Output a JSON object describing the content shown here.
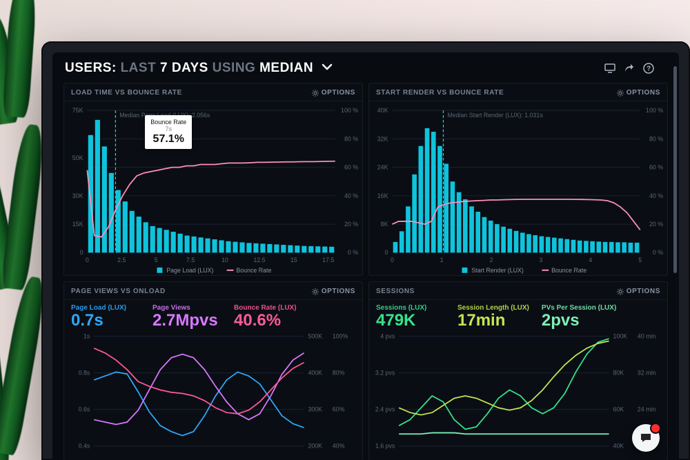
{
  "header": {
    "prefix": "USERS:",
    "range_dim": "LAST",
    "range_strong": "7 DAYS",
    "agg_dim": "USING",
    "agg_strong": "MEDIAN"
  },
  "icons": {
    "monitor_tooltip": "Display",
    "share_tooltip": "Share",
    "help_tooltip": "Help"
  },
  "panels": {
    "top_left": {
      "title": "LOAD TIME VS BOUNCE RATE",
      "options_label": "OPTIONS",
      "type": "bar+line",
      "y_left": {
        "label_unit": "K",
        "max": 75,
        "ticks": [
          0,
          15,
          30,
          50,
          75
        ],
        "tick_labels": [
          "0",
          "15K",
          "30K",
          "50K",
          "75K"
        ],
        "color": "#12d2e8"
      },
      "y_right": {
        "label_unit": "%",
        "max": 100,
        "ticks": [
          0,
          20,
          40,
          60,
          80,
          100
        ],
        "tick_labels": [
          "0 %",
          "20 %",
          "40 %",
          "60 %",
          "80 %",
          "100 %"
        ],
        "color": "#ff6aa8"
      },
      "x": {
        "min": 0,
        "max": 18,
        "ticks": [
          0,
          2.5,
          5,
          7.5,
          10,
          12.5,
          15,
          17.5
        ],
        "tick_labels": [
          "0",
          "2.5",
          "5",
          "7.5",
          "10",
          "12.5",
          "15",
          "17.5"
        ]
      },
      "bars": {
        "color": "#0fc3dc",
        "values": [
          62,
          70,
          56,
          42,
          33,
          27,
          22,
          19,
          16,
          14,
          13,
          12,
          11,
          10,
          9,
          8.5,
          8,
          7.5,
          7,
          6.5,
          6,
          5.7,
          5.4,
          5.1,
          4.9,
          4.7,
          4.5,
          4.3,
          4.1,
          3.9,
          3.7,
          3.5,
          3.4,
          3.3,
          3.2,
          3.1
        ],
        "value_scale_to": 75
      },
      "line": {
        "color": "#ff8fb8",
        "points_pct": [
          58,
          12,
          11,
          18,
          30,
          40,
          48,
          54,
          56,
          57,
          58,
          59,
          60,
          60,
          61,
          61,
          62,
          62,
          62,
          62.5,
          63,
          63,
          63,
          63.2,
          63.5,
          63.5,
          63.6,
          63.7,
          63.8,
          63.8,
          63.9,
          64,
          64,
          64.1,
          64.2,
          64.3
        ]
      },
      "median_marker": {
        "x_value": 2.056,
        "label": "Median Page Load (LUX): 2.056s",
        "color": "#0fe0f8"
      },
      "tooltip": {
        "x_value": 4.2,
        "line1": "Bounce Rate",
        "line2": "7s",
        "big": "57.1%"
      },
      "legend": [
        {
          "swatch": "square",
          "color": "#0fc3dc",
          "label": "Page Load (LUX)"
        },
        {
          "swatch": "line",
          "color": "#ff8fb8",
          "label": "Bounce Rate"
        }
      ]
    },
    "top_right": {
      "title": "START RENDER VS BOUNCE RATE",
      "options_label": "OPTIONS",
      "type": "bar+line",
      "y_left": {
        "max": 40,
        "ticks": [
          0,
          8,
          16,
          24,
          32,
          40
        ],
        "tick_labels": [
          "0",
          "8K",
          "16K",
          "24K",
          "32K",
          "40K"
        ],
        "color": "#12d2e8"
      },
      "y_right": {
        "max": 100,
        "ticks": [
          0,
          20,
          40,
          60,
          80,
          100
        ],
        "tick_labels": [
          "0 %",
          "20 %",
          "40 %",
          "60 %",
          "80 %",
          "100 %"
        ],
        "color": "#ff6aa8"
      },
      "x": {
        "min": 0,
        "max": 5,
        "ticks": [
          0,
          1,
          2,
          3,
          4,
          5
        ],
        "tick_labels": [
          "0",
          "1",
          "2",
          "3",
          "4",
          "5"
        ]
      },
      "bars": {
        "color": "#0fc3dc",
        "values": [
          3,
          6,
          13,
          22,
          30,
          35,
          34,
          30,
          25,
          20,
          17,
          15,
          13,
          11.5,
          10,
          9,
          8,
          7.3,
          6.7,
          6.1,
          5.6,
          5.2,
          4.9,
          4.6,
          4.4,
          4.2,
          4.0,
          3.8,
          3.6,
          3.4,
          3.3,
          3.2,
          3.1,
          3.0,
          3.0,
          2.9,
          2.9,
          2.8,
          2.8
        ],
        "value_scale_to": 40
      },
      "line": {
        "color": "#ff8fb8",
        "points_pct": [
          20,
          22,
          22,
          22,
          21,
          20,
          22,
          32,
          34,
          35,
          35.5,
          36,
          36.3,
          36.5,
          36.7,
          37,
          37,
          37.2,
          37.3,
          37.4,
          37.5,
          37.5,
          37.5,
          37.5,
          37.5,
          37.5,
          37.5,
          37.5,
          37.4,
          37.4,
          37.3,
          37.2,
          37,
          36.5,
          35,
          32,
          28,
          22,
          16
        ]
      },
      "median_marker": {
        "x_value": 1.031,
        "label": "Median Start Render (LUX): 1.031s",
        "color": "#0fe0f8"
      },
      "legend": [
        {
          "swatch": "square",
          "color": "#0fc3dc",
          "label": "Start Render (LUX)"
        },
        {
          "swatch": "line",
          "color": "#ff8fb8",
          "label": "Bounce Rate"
        }
      ]
    },
    "bottom_left": {
      "title": "PAGE VIEWS VS ONLOAD",
      "options_label": "OPTIONS",
      "kpis": [
        {
          "label": "Page Load (LUX)",
          "value": "0.7s",
          "color": "#2fa8ff"
        },
        {
          "label": "Page Views",
          "value": "2.7Mpvs",
          "color": "#d978ff"
        },
        {
          "label": "Bounce Rate (LUX)",
          "value": "40.6%",
          "color": "#ff5a99"
        }
      ],
      "y_left": {
        "ticks_labels": [
          "1s",
          "0.8s",
          "0.6s",
          "0.4s"
        ],
        "color": "#7a8392"
      },
      "y_right_a": {
        "ticks_labels": [
          "500K",
          "400K",
          "300K",
          "200K"
        ],
        "color": "#7a8392"
      },
      "y_right_b": {
        "ticks_labels": [
          "100%",
          "80%",
          "60%",
          "40%"
        ],
        "color": "#7a8392"
      },
      "lines": [
        {
          "color": "#2fa8ff",
          "points": [
            0.78,
            0.8,
            0.82,
            0.81,
            0.72,
            0.62,
            0.55,
            0.52,
            0.5,
            0.52,
            0.6,
            0.7,
            0.78,
            0.82,
            0.8,
            0.76,
            0.68,
            0.6,
            0.56,
            0.54
          ],
          "range": [
            0.4,
            1.0
          ]
        },
        {
          "color": "#d978ff",
          "points": [
            0.3,
            0.28,
            0.26,
            0.28,
            0.38,
            0.55,
            0.72,
            0.82,
            0.85,
            0.82,
            0.72,
            0.58,
            0.45,
            0.35,
            0.3,
            0.35,
            0.5,
            0.68,
            0.8,
            0.86
          ],
          "range": [
            0,
            1
          ]
        },
        {
          "color": "#ff5a99",
          "points": [
            0.9,
            0.86,
            0.8,
            0.72,
            0.62,
            0.58,
            0.55,
            0.53,
            0.52,
            0.5,
            0.46,
            0.4,
            0.36,
            0.35,
            0.38,
            0.45,
            0.55,
            0.65,
            0.73,
            0.78
          ],
          "range": [
            0,
            1
          ]
        }
      ]
    },
    "bottom_right": {
      "title": "SESSIONS",
      "options_label": "OPTIONS",
      "kpis": [
        {
          "label": "Sessions (LUX)",
          "value": "479K",
          "color": "#36e38c"
        },
        {
          "label": "Session Length (LUX)",
          "value": "17min",
          "color": "#c4e552"
        },
        {
          "label": "PVs Per Session (LUX)",
          "value": "2pvs",
          "color": "#7df0b6"
        }
      ],
      "y_left": {
        "ticks_labels": [
          "4 pvs",
          "3.2 pvs",
          "2.4 pvs",
          "1.6 pvs"
        ],
        "color": "#7a8392"
      },
      "y_right_a": {
        "ticks_labels": [
          "100K",
          "80K",
          "60K",
          "40K"
        ],
        "color": "#7a8392"
      },
      "y_right_b": {
        "ticks_labels": [
          "40 min",
          "32 min",
          "24 min",
          "16 min"
        ],
        "color": "#7a8392"
      },
      "lines": [
        {
          "color": "#36e38c",
          "points": [
            0.25,
            0.3,
            0.4,
            0.5,
            0.45,
            0.3,
            0.22,
            0.24,
            0.35,
            0.48,
            0.55,
            0.5,
            0.4,
            0.35,
            0.4,
            0.52,
            0.7,
            0.85,
            0.95,
            0.98
          ],
          "range": [
            0,
            1
          ]
        },
        {
          "color": "#c4e552",
          "points": [
            0.4,
            0.36,
            0.34,
            0.36,
            0.42,
            0.48,
            0.5,
            0.48,
            0.44,
            0.4,
            0.38,
            0.4,
            0.46,
            0.55,
            0.66,
            0.76,
            0.84,
            0.9,
            0.94,
            0.96
          ],
          "range": [
            0,
            1
          ]
        },
        {
          "color": "#7df0b6",
          "points": [
            0.18,
            0.18,
            0.18,
            0.19,
            0.19,
            0.19,
            0.18,
            0.18,
            0.18,
            0.18,
            0.18,
            0.18,
            0.18,
            0.18,
            0.18,
            0.18,
            0.18,
            0.18,
            0.18,
            0.18
          ],
          "range": [
            0,
            1
          ]
        }
      ]
    }
  },
  "colors": {
    "bg": "#080b10",
    "panel": "#0a0e14",
    "grid": "#1a2230",
    "text_dim": "#7a8392"
  }
}
